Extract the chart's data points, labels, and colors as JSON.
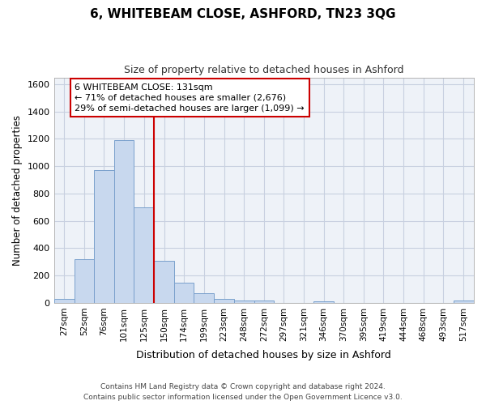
{
  "title": "6, WHITEBEAM CLOSE, ASHFORD, TN23 3QG",
  "subtitle": "Size of property relative to detached houses in Ashford",
  "xlabel": "Distribution of detached houses by size in Ashford",
  "ylabel": "Number of detached properties",
  "footnote1": "Contains HM Land Registry data © Crown copyright and database right 2024.",
  "footnote2": "Contains public sector information licensed under the Open Government Licence v3.0.",
  "bar_color": "#c8d8ee",
  "bar_edge_color": "#7aa0cc",
  "grid_color": "#c8d0e0",
  "vline_color": "#cc0000",
  "vline_x": 137.5,
  "annotation_line1": "6 WHITEBEAM CLOSE: 131sqm",
  "annotation_line2": "← 71% of detached houses are smaller (2,676)",
  "annotation_line3": "29% of semi-detached houses are larger (1,099) →",
  "categories": [
    "27sqm",
    "52sqm",
    "76sqm",
    "101sqm",
    "125sqm",
    "150sqm",
    "174sqm",
    "199sqm",
    "223sqm",
    "248sqm",
    "272sqm",
    "297sqm",
    "321sqm",
    "346sqm",
    "370sqm",
    "395sqm",
    "419sqm",
    "444sqm",
    "468sqm",
    "493sqm",
    "517sqm"
  ],
  "bin_edges": [
    14.5,
    39.5,
    63.5,
    88.5,
    112.5,
    137.5,
    162.5,
    186.5,
    211.5,
    235.5,
    260.5,
    284.5,
    309.5,
    333.5,
    358.5,
    382.5,
    407.5,
    431.5,
    456.5,
    480.5,
    505.5,
    530.5
  ],
  "values": [
    30,
    320,
    970,
    1190,
    700,
    310,
    150,
    70,
    30,
    20,
    20,
    0,
    0,
    10,
    0,
    0,
    0,
    0,
    0,
    0,
    15
  ],
  "ylim": [
    0,
    1650
  ],
  "yticks": [
    0,
    200,
    400,
    600,
    800,
    1000,
    1200,
    1400,
    1600
  ],
  "bg_color": "#eef2f8"
}
